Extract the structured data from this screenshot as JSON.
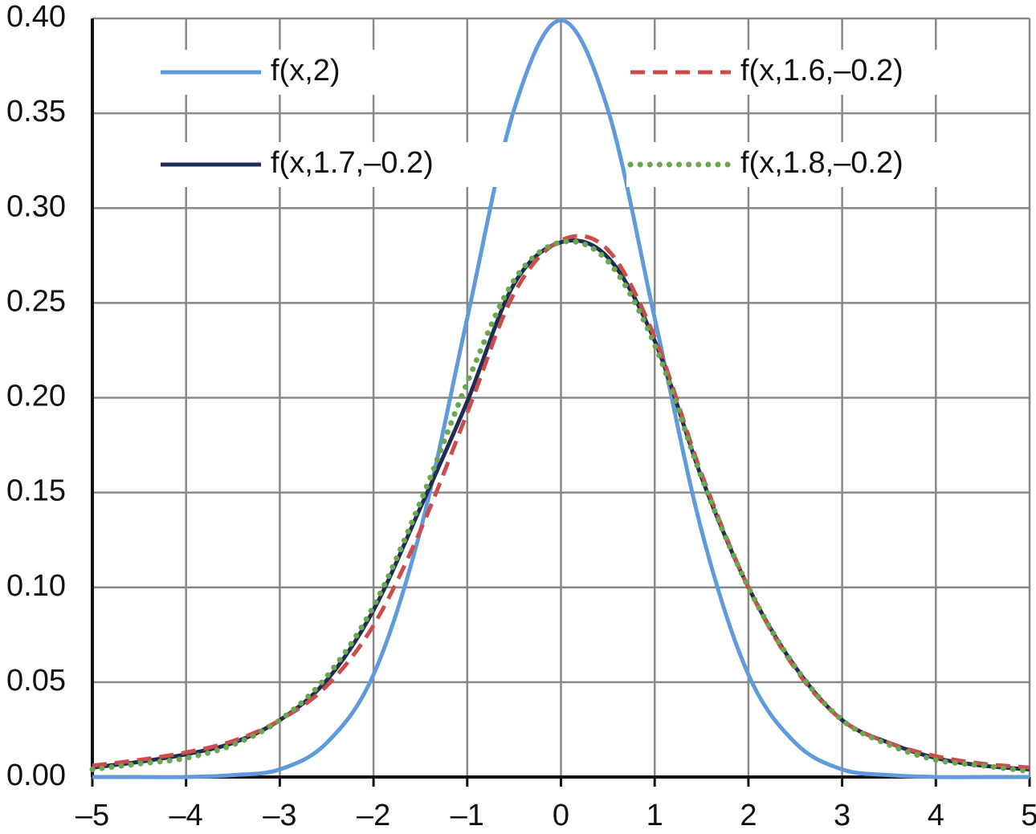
{
  "chart_data": {
    "type": "line",
    "x": [
      -5,
      -4.5,
      -4,
      -3.5,
      -3,
      -2.5,
      -2,
      -1.5,
      -1,
      -0.5,
      0,
      0.5,
      1,
      1.5,
      2,
      2.5,
      3,
      3.5,
      4,
      4.5,
      5
    ],
    "series": [
      {
        "name": "f(x,2)",
        "color": "#5f9bdc",
        "style": "solid",
        "values": [
          0.0,
          0.0,
          0.0,
          0.001,
          0.004,
          0.018,
          0.054,
          0.13,
          0.242,
          0.352,
          0.399,
          0.352,
          0.242,
          0.13,
          0.054,
          0.018,
          0.004,
          0.001,
          0.0,
          0.0,
          0.0
        ]
      },
      {
        "name": "f(x,1.6,–0.2)",
        "color": "#cc4c4c",
        "style": "dashed",
        "values": [
          0.006,
          0.009,
          0.013,
          0.019,
          0.03,
          0.048,
          0.08,
          0.13,
          0.192,
          0.255,
          0.283,
          0.278,
          0.232,
          0.16,
          0.1,
          0.057,
          0.03,
          0.018,
          0.011,
          0.007,
          0.005
        ]
      },
      {
        "name": "f(x,1.7,–0.2)",
        "color": "#1f2d55",
        "style": "solid",
        "values": [
          0.005,
          0.008,
          0.012,
          0.018,
          0.03,
          0.051,
          0.088,
          0.142,
          0.198,
          0.26,
          0.282,
          0.274,
          0.23,
          0.158,
          0.1,
          0.058,
          0.03,
          0.018,
          0.01,
          0.006,
          0.004
        ]
      },
      {
        "name": "f(x,1.8,–0.2)",
        "color": "#6aa84f",
        "style": "dotted",
        "values": [
          0.004,
          0.007,
          0.01,
          0.017,
          0.03,
          0.053,
          0.09,
          0.145,
          0.208,
          0.262,
          0.282,
          0.272,
          0.228,
          0.158,
          0.1,
          0.058,
          0.03,
          0.017,
          0.009,
          0.006,
          0.003
        ]
      }
    ],
    "xlim": [
      -5,
      5
    ],
    "xticks": [
      {
        "value": -5,
        "label": "–5"
      },
      {
        "value": -4,
        "label": "–4"
      },
      {
        "value": -3,
        "label": "–3"
      },
      {
        "value": -2,
        "label": "–2"
      },
      {
        "value": -1,
        "label": "–1"
      },
      0,
      1,
      2,
      3,
      4,
      5
    ],
    "ylim": [
      0,
      0.4
    ],
    "yticks": [
      {
        "value": 0,
        "label": "0.00"
      },
      {
        "value": 0.05,
        "label": "0.05"
      },
      {
        "value": 0.1,
        "label": "0.10"
      },
      {
        "value": 0.15,
        "label": "0.15"
      },
      {
        "value": 0.2,
        "label": "0.20"
      },
      {
        "value": 0.25,
        "label": "0.25"
      },
      {
        "value": 0.3,
        "label": "0.30"
      },
      {
        "value": 0.35,
        "label": "0.35"
      },
      {
        "value": 0.4,
        "label": "0.40"
      }
    ],
    "grid": true
  }
}
